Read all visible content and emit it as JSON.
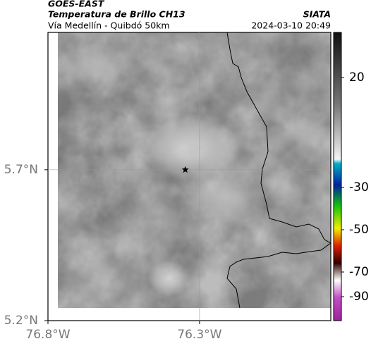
{
  "chart_data": {
    "type": "map",
    "title": "GOES-EAST",
    "subtitle": "Temperatura de Brillo CH13",
    "caption": "Vía Medellín - Quibdó 50km",
    "source": "SIATA",
    "datetime": "2024-03-10 20:49",
    "xlim": [
      -76.8,
      -75.867
    ],
    "ylim": [
      5.2,
      6.155
    ],
    "xticks": [
      {
        "value": -76.8,
        "label": "76.8°W"
      },
      {
        "value": -76.3,
        "label": "76.3°W"
      }
    ],
    "yticks": [
      {
        "value": 5.2,
        "label": "5.2°N"
      },
      {
        "value": 5.7,
        "label": "5.7°N"
      }
    ],
    "grid": true,
    "marker": {
      "x": -76.347,
      "y": 5.7
    },
    "colorbar_ticks": [
      20,
      -30,
      -50,
      -70,
      -90
    ]
  }
}
